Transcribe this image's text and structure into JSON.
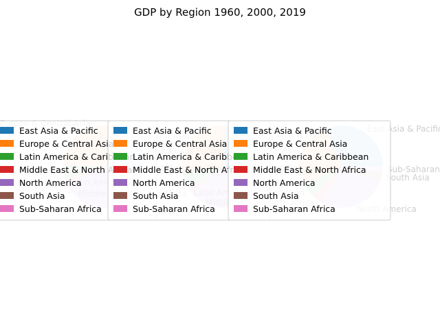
{
  "figure": {
    "title": "GDP by Region 1960, 2000, 2019"
  },
  "colors": {
    "East Asia & Pacific": "#1f77b4",
    "Europe & Central Asia": "#ff7f0e",
    "Latin America & Caribbean": "#2ca02c",
    "Middle East & North Africa": "#d62728",
    "North America": "#9467bd",
    "South Asia": "#8c564b",
    "Sub-Saharan Africa": "#e377c2"
  },
  "chart_data": [
    {
      "type": "pie",
      "year": "1960",
      "categories": [
        "East Asia & Pacific",
        "Europe & Central Asia",
        "Latin America & Caribbean",
        "Middle East & North Africa",
        "North America",
        "South Asia",
        "Sub-Saharan Africa"
      ],
      "values": [
        11,
        38,
        6,
        2,
        40,
        2,
        1
      ],
      "wedge_alpha": 0.2,
      "legend": [
        "East Asia & Pacific",
        "Europe & Central Asia",
        "Latin America & Caribbean",
        "Middle East & North Africa",
        "North America",
        "South Asia",
        "Sub-Saharan Africa"
      ],
      "legend_position": "center"
    },
    {
      "type": "pie",
      "year": "2000",
      "categories": [
        "East Asia & Pacific",
        "Europe & Central Asia",
        "Latin America & Caribbean",
        "Middle East & North Africa",
        "North America",
        "South Asia",
        "Sub-Saharan Africa"
      ],
      "values": [
        24,
        27,
        7,
        2,
        35,
        2,
        1
      ],
      "wedge_alpha": 0.2,
      "legend": [
        "East Asia & Pacific",
        "Europe & Central Asia",
        "Latin America & Caribbean",
        "Middle East & North Africa",
        "North America",
        "South Asia",
        "Sub-Saharan Africa"
      ],
      "legend_position": "center"
    },
    {
      "type": "pie",
      "year": "2019",
      "categories": [
        "East Asia & Pacific",
        "Europe & Central Asia",
        "Latin America & Caribbean",
        "Middle East & North Africa",
        "North America",
        "South Asia",
        "Sub-Saharan Africa"
      ],
      "values": [
        32,
        26,
        6,
        4,
        28,
        4,
        2
      ],
      "wedge_alpha": 0.2,
      "legend": [
        "East Asia & Pacific",
        "Europe & Central Asia",
        "Latin America & Caribbean",
        "Middle East & North Africa",
        "North America",
        "South Asia",
        "Sub-Saharan Africa"
      ],
      "legend_position": "center"
    }
  ]
}
